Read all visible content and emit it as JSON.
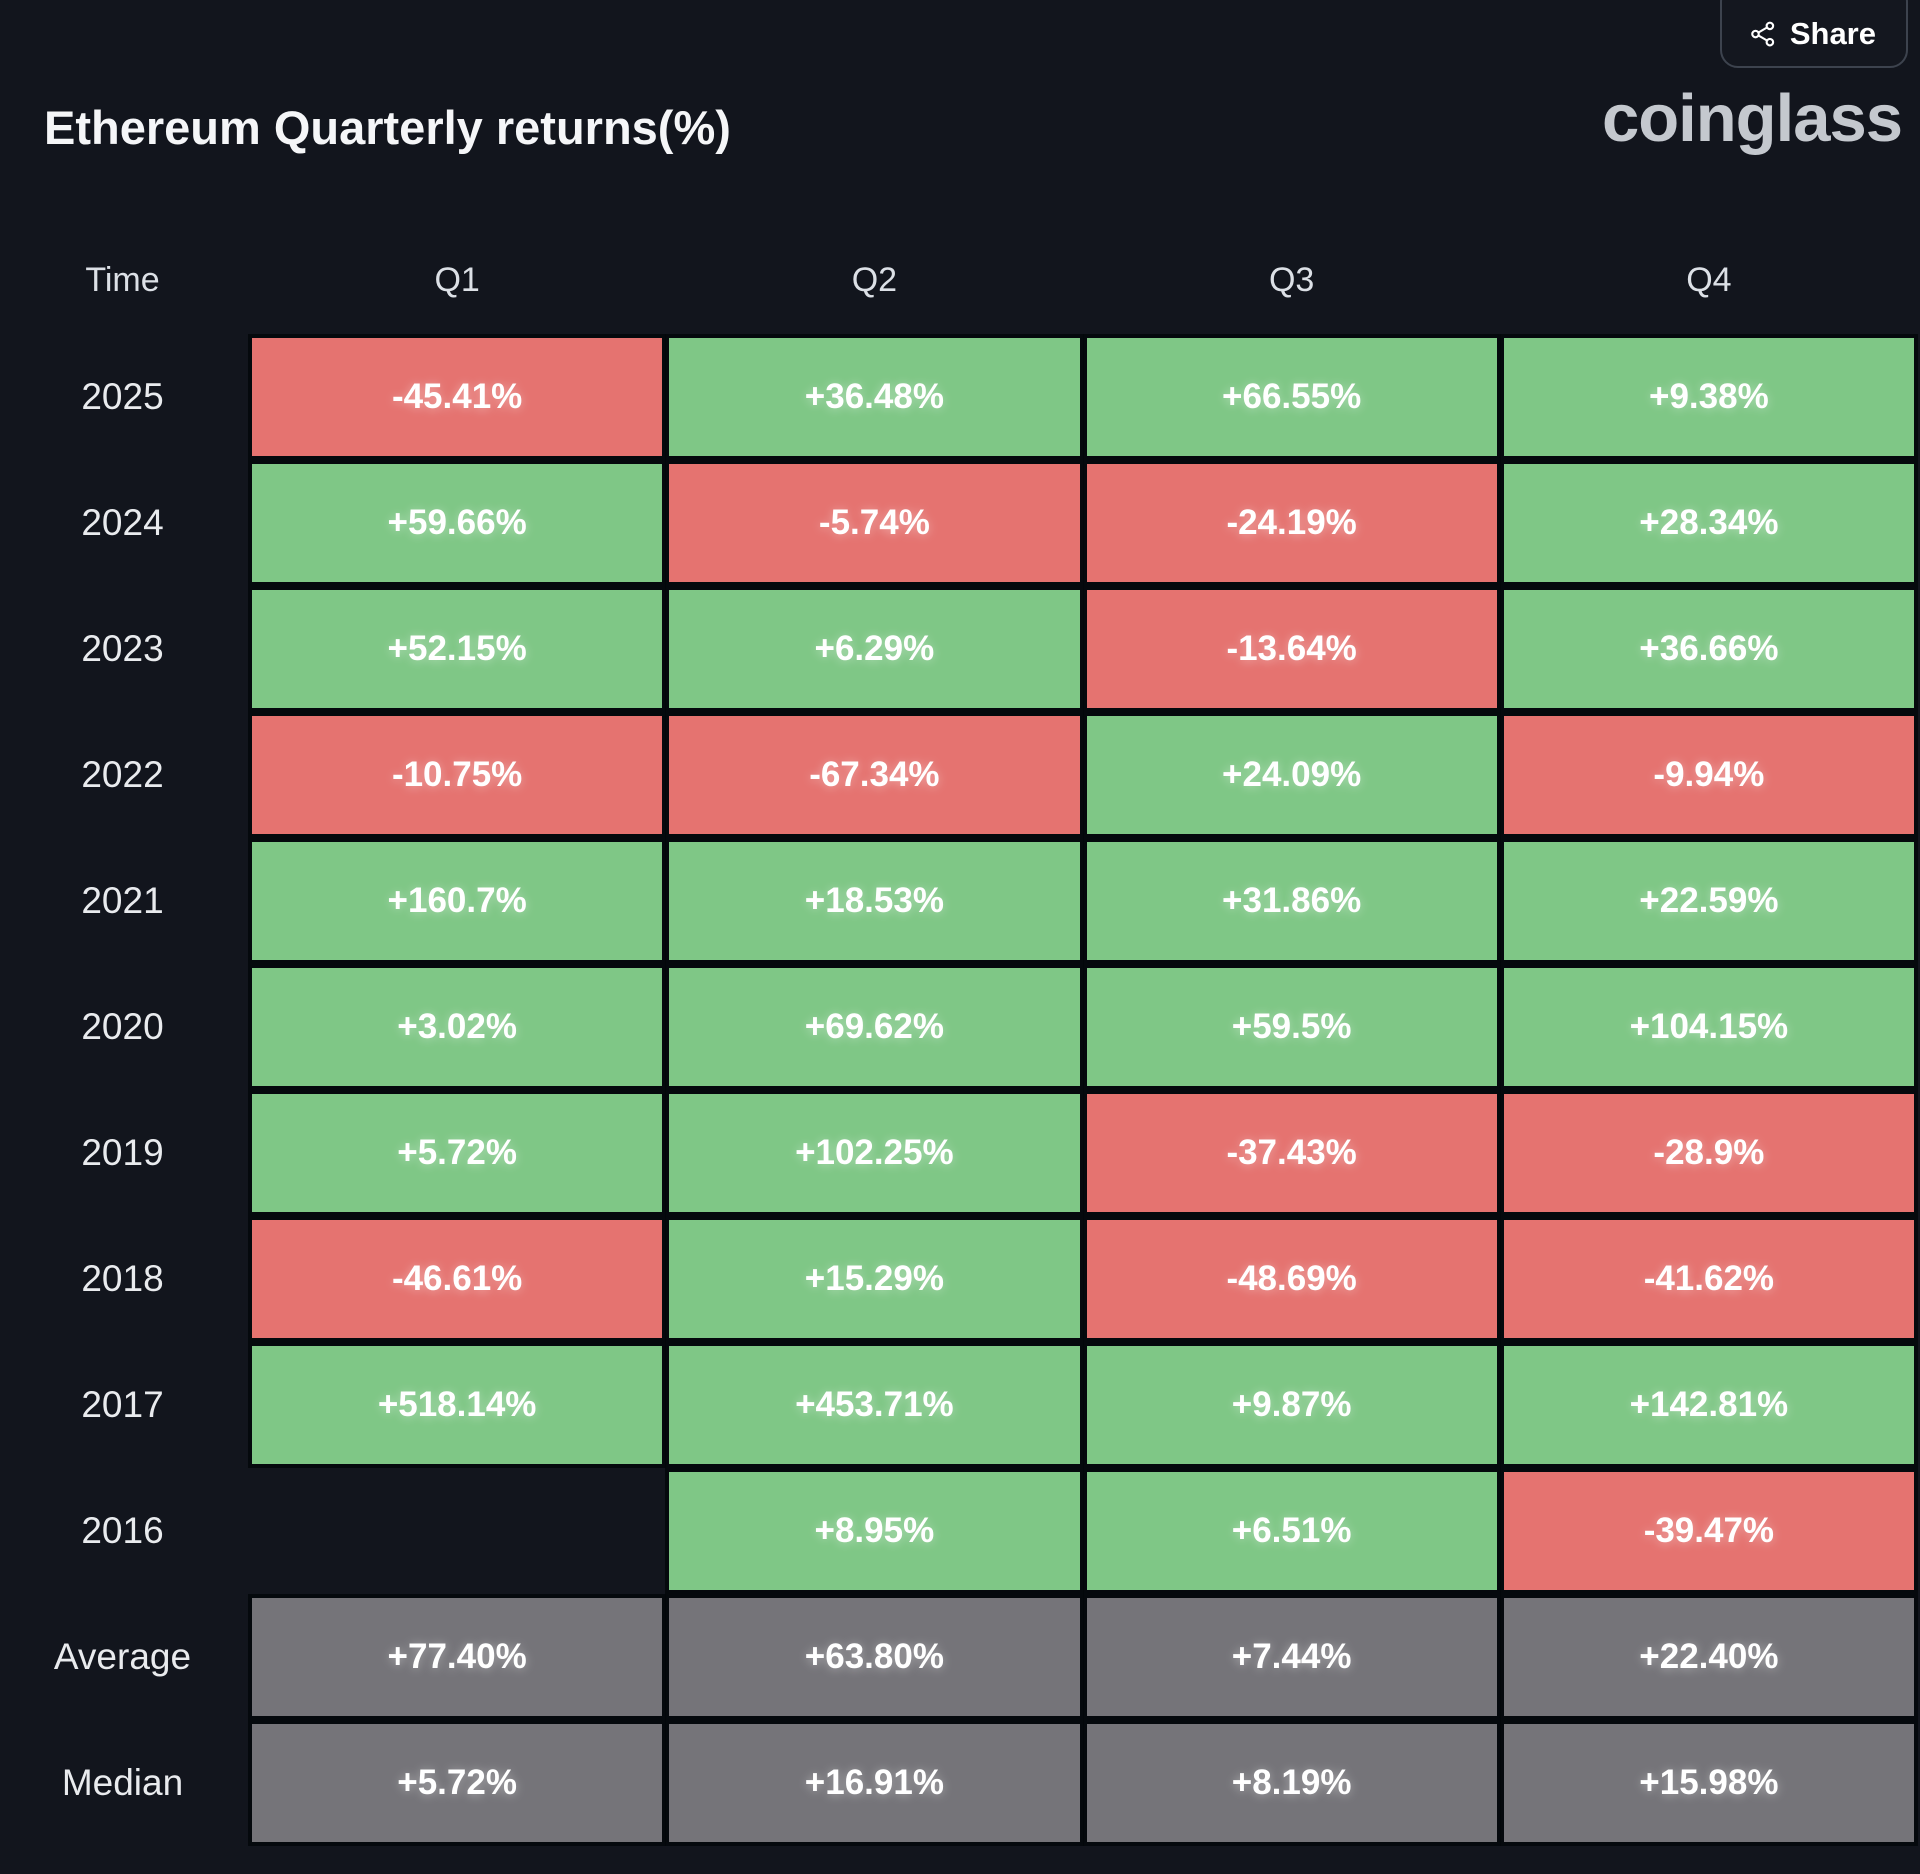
{
  "header": {
    "title": "Ethereum Quarterly returns(%)",
    "brand": "coinglass",
    "share_label": "Share",
    "share_icon": "share-nodes-icon"
  },
  "colors": {
    "positive": "#7fc786",
    "negative": "#e57370",
    "summary": "#757479",
    "background": "#12151d",
    "cell_text": "#ffffff"
  },
  "chart_data": {
    "type": "heatmap",
    "title": "Ethereum Quarterly returns(%)",
    "unit": "%",
    "columns_all": [
      "Time",
      "Q1",
      "Q2",
      "Q3",
      "Q4"
    ],
    "columns": [
      "Q1",
      "Q2",
      "Q3",
      "Q4"
    ],
    "rows": [
      {
        "label": "2025",
        "type": "year",
        "values": [
          "-45.41%",
          "+36.48%",
          "+66.55%",
          "+9.38%"
        ]
      },
      {
        "label": "2024",
        "type": "year",
        "values": [
          "+59.66%",
          "-5.74%",
          "-24.19%",
          "+28.34%"
        ]
      },
      {
        "label": "2023",
        "type": "year",
        "values": [
          "+52.15%",
          "+6.29%",
          "-13.64%",
          "+36.66%"
        ]
      },
      {
        "label": "2022",
        "type": "year",
        "values": [
          "-10.75%",
          "-67.34%",
          "+24.09%",
          "-9.94%"
        ]
      },
      {
        "label": "2021",
        "type": "year",
        "values": [
          "+160.7%",
          "+18.53%",
          "+31.86%",
          "+22.59%"
        ]
      },
      {
        "label": "2020",
        "type": "year",
        "values": [
          "+3.02%",
          "+69.62%",
          "+59.5%",
          "+104.15%"
        ]
      },
      {
        "label": "2019",
        "type": "year",
        "values": [
          "+5.72%",
          "+102.25%",
          "-37.43%",
          "-28.9%"
        ]
      },
      {
        "label": "2018",
        "type": "year",
        "values": [
          "-46.61%",
          "+15.29%",
          "-48.69%",
          "-41.62%"
        ]
      },
      {
        "label": "2017",
        "type": "year",
        "values": [
          "+518.14%",
          "+453.71%",
          "+9.87%",
          "+142.81%"
        ]
      },
      {
        "label": "2016",
        "type": "year",
        "values": [
          "",
          "+8.95%",
          "+6.51%",
          "-39.47%"
        ]
      },
      {
        "label": "Average",
        "type": "summary",
        "values": [
          "+77.40%",
          "+63.80%",
          "+7.44%",
          "+22.40%"
        ]
      },
      {
        "label": "Median",
        "type": "summary",
        "values": [
          "+5.72%",
          "+16.91%",
          "+8.19%",
          "+15.98%"
        ]
      }
    ],
    "legend_position": "none",
    "grid": false
  }
}
